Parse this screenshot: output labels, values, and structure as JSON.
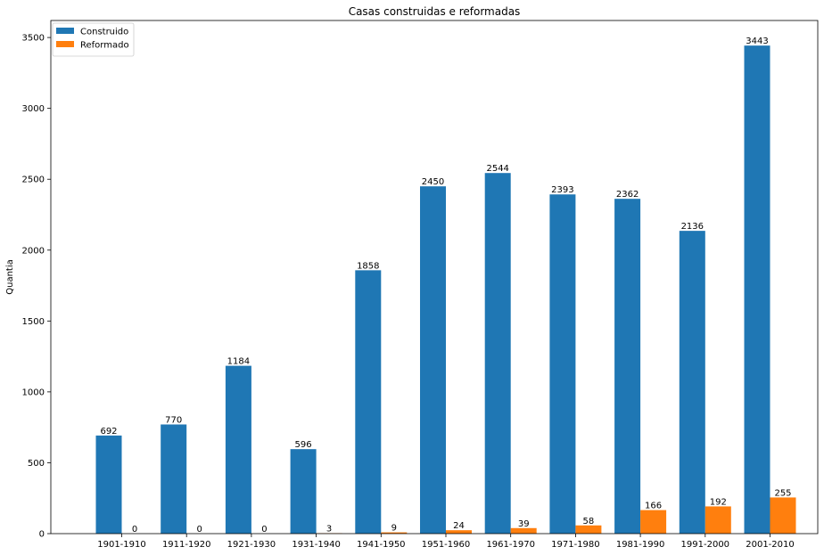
{
  "chart_data": {
    "type": "bar",
    "title": "Casas construidas e reformadas",
    "xlabel": "",
    "ylabel": "Quantia",
    "categories": [
      "1901-1910",
      "1911-1920",
      "1921-1930",
      "1931-1940",
      "1941-1950",
      "1951-1960",
      "1961-1970",
      "1971-1980",
      "1981-1990",
      "1991-2000",
      "2001-2010"
    ],
    "series": [
      {
        "name": "Construido",
        "color": "#1f77b4",
        "values": [
          692,
          770,
          1184,
          596,
          1858,
          2450,
          2544,
          2393,
          2362,
          2136,
          3443
        ]
      },
      {
        "name": "Reformado",
        "color": "#ff7f0e",
        "values": [
          0,
          0,
          0,
          3,
          9,
          24,
          39,
          58,
          166,
          192,
          255
        ]
      }
    ],
    "ylim": [
      0,
      3620
    ],
    "yticks": [
      0,
      500,
      1000,
      1500,
      2000,
      2500,
      3000,
      3500
    ],
    "grid": false,
    "legend": "top-left",
    "data_labels": true
  }
}
